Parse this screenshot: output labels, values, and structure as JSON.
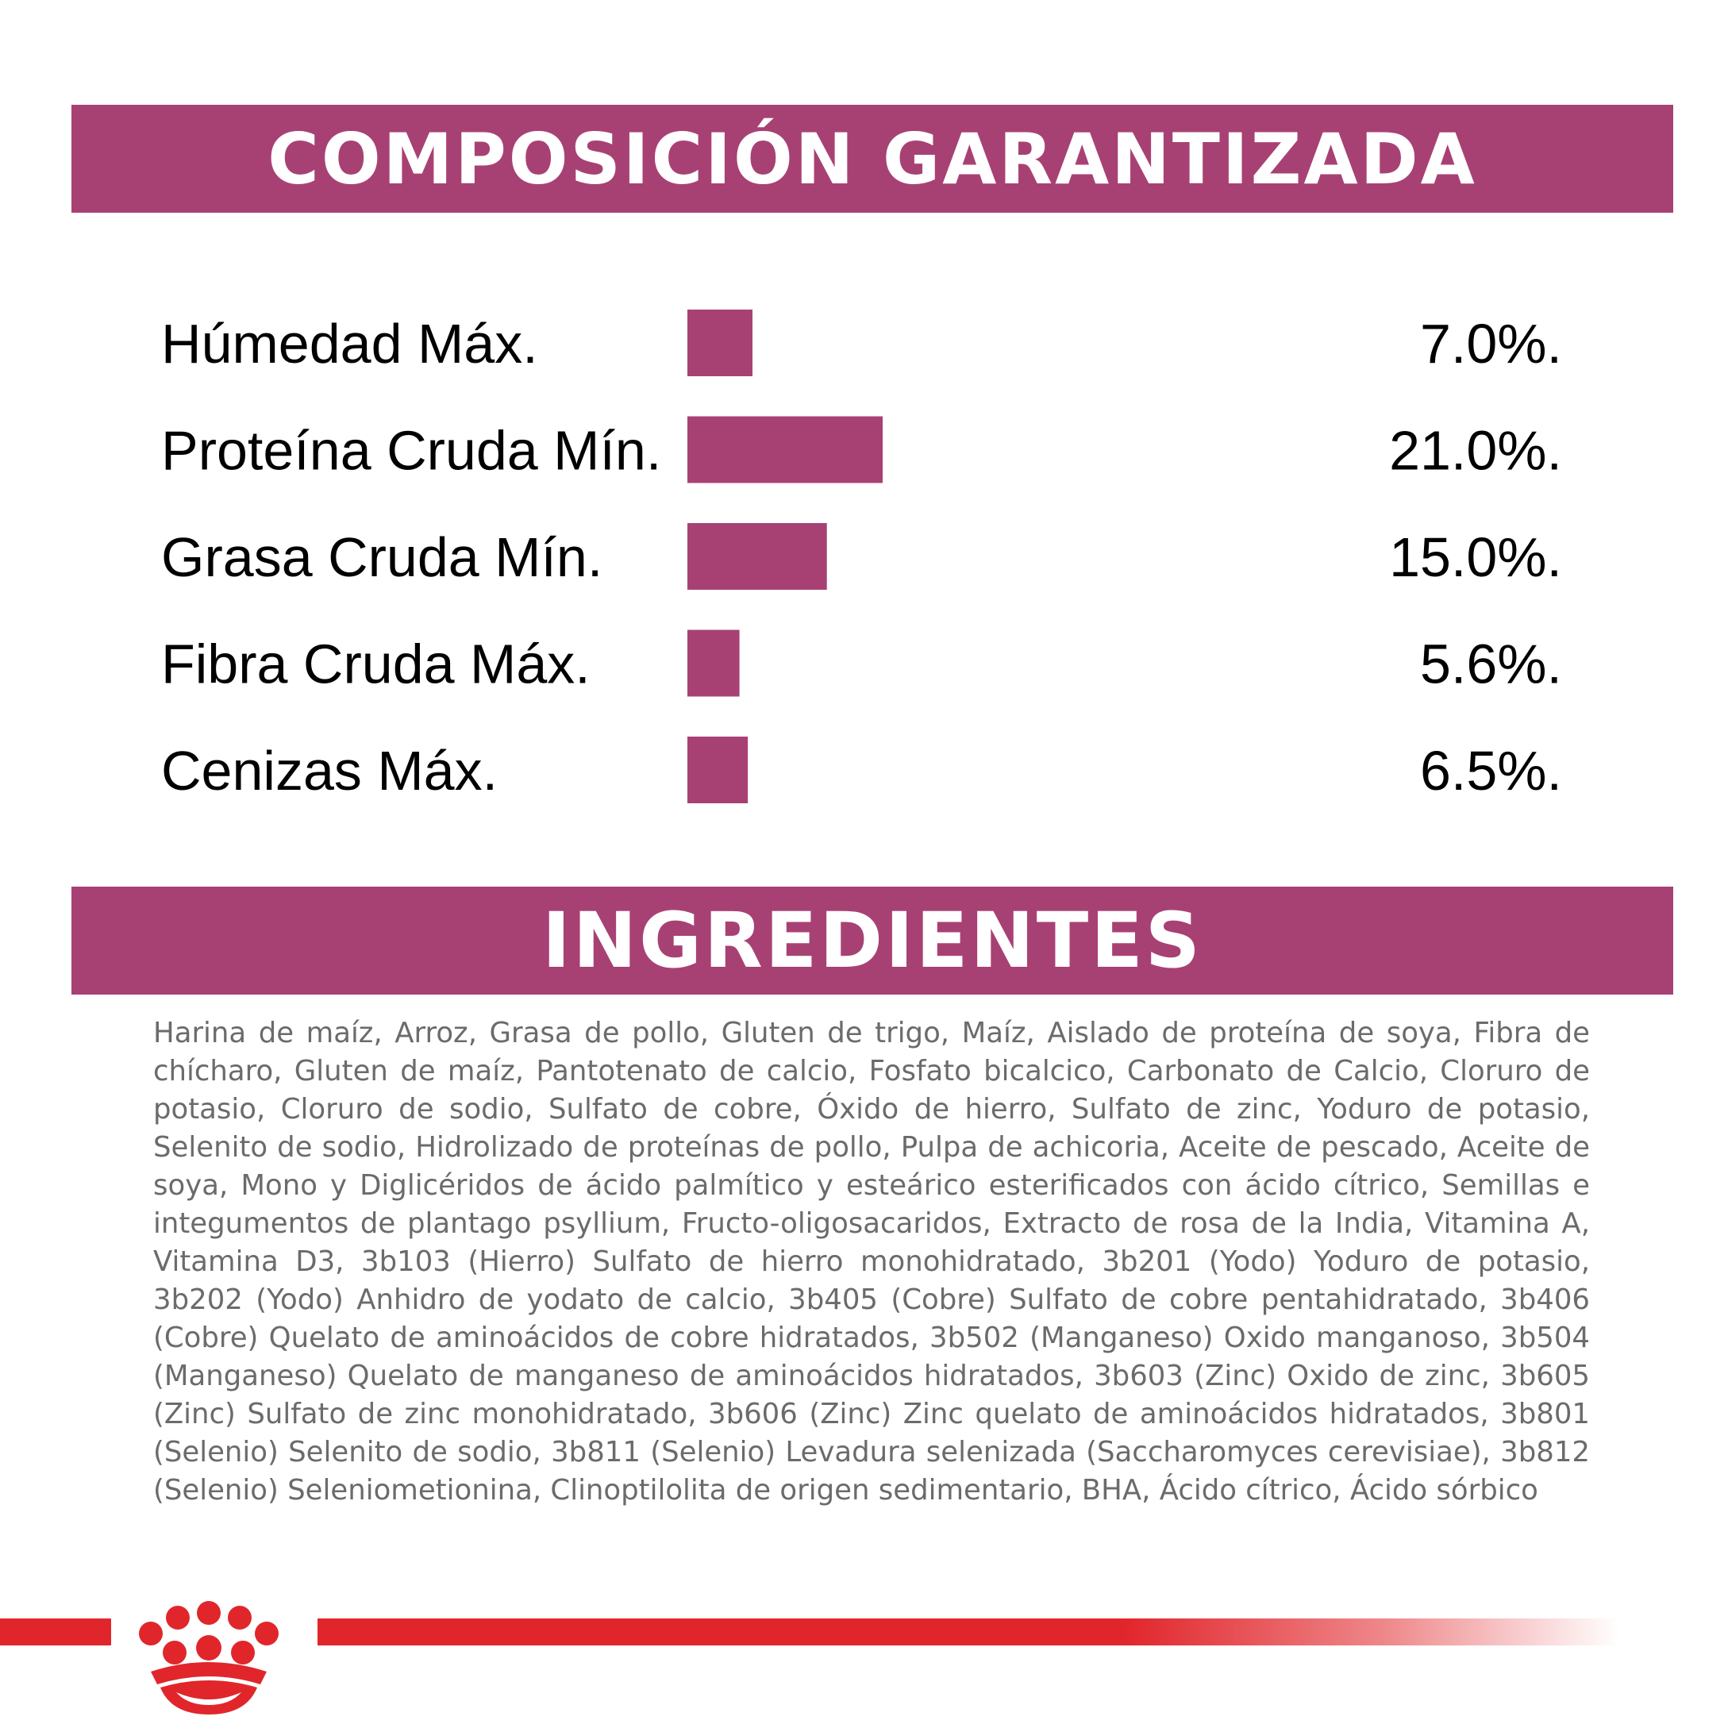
{
  "composition": {
    "title": "COMPOSICIÓN GARANTIZADA"
  },
  "chart_data": {
    "type": "bar",
    "orientation": "horizontal",
    "title": "COMPOSICIÓN GARANTIZADA",
    "categories": [
      "Húmedad Máx.",
      "Proteína Cruda Mín.",
      "Grasa Cruda Mín.",
      "Fibra Cruda Máx.",
      "Cenizas Máx."
    ],
    "values": [
      7.0,
      21.0,
      15.0,
      5.6,
      6.5
    ],
    "value_labels": [
      "7.0%.",
      "21.0%.",
      "15.0%.",
      "5.6%.",
      "6.5%."
    ],
    "unit": "%",
    "bar_color": "#a84173",
    "xlabel": "",
    "ylabel": ""
  },
  "ingredients": {
    "title": "INGREDIENTES",
    "text": "Harina de maíz, Arroz, Grasa de pollo, Gluten de trigo, Maíz, Aislado de proteína de soya, Fibra de chícharo, Gluten de maíz, Pantotenato de calcio, Fosfato bicalcico, Carbonato de Calcio, Cloruro de potasio, Cloruro de sodio, Sulfato de cobre, Óxido de hierro, Sulfato de zinc, Yoduro de potasio, Selenito de sodio, Hidrolizado de proteínas de pollo, Pulpa de achicoria, Aceite de pescado, Aceite de soya, Mono y Diglicéridos de ácido palmítico y esteárico esterificados con ácido cítrico, Semillas e integumentos de plantago psyllium, Fructo-oligosacaridos, Extracto de rosa de la India, Vitamina A, Vitamina D3, 3b103 (Hierro) Sulfato de hierro monohidratado, 3b201 (Yodo) Yoduro de potasio, 3b202 (Yodo) Anhidro de yodato de calcio, 3b405 (Cobre) Sulfato de cobre pentahidratado, 3b406 (Cobre) Quelato de aminoácidos de cobre hidratados, 3b502 (Manganeso) Oxido manganoso, 3b504 (Manganeso) Quelato de manganeso de aminoácidos hidratados, 3b603 (Zinc) Oxido de zinc, 3b605 (Zinc) Sulfato de zinc monohidratado, 3b606 (Zinc)  Zinc quelato de aminoácidos hidratados, 3b801 (Selenio) Selenito de sodio, 3b811 (Selenio) Levadura selenizada (Saccharomyces cerevisiae), 3b812 (Selenio) Seleniometionina, Clinoptilolita de origen sedimentario, BHA, Ácido cítrico, Ácido sórbico"
  },
  "colors": {
    "accent": "#a84173",
    "brand_red": "#e1262b",
    "ingredients_text": "#6b6b6b"
  },
  "logo": {
    "icon": "royal-canin-crown-icon"
  }
}
